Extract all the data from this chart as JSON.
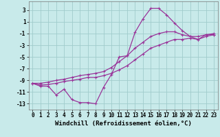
{
  "xlabel": "Windchill (Refroidissement éolien,°C)",
  "xlim": [
    -0.5,
    23.5
  ],
  "ylim": [
    -14,
    4.5
  ],
  "yticks": [
    3,
    1,
    -1,
    -3,
    -5,
    -7,
    -9,
    -11,
    -13
  ],
  "xticks": [
    0,
    1,
    2,
    3,
    4,
    5,
    6,
    7,
    8,
    9,
    10,
    11,
    12,
    13,
    14,
    15,
    16,
    17,
    18,
    19,
    20,
    21,
    22,
    23
  ],
  "bg_color": "#c8eaea",
  "grid_color": "#a0cccc",
  "line_color": "#993399",
  "line1_x": [
    0,
    1,
    2,
    3,
    4,
    5,
    6,
    7,
    8,
    9,
    10,
    11,
    12,
    13,
    14,
    15,
    16,
    17,
    18,
    19,
    20,
    21,
    22,
    23
  ],
  "line1_y": [
    -9.5,
    -9.8,
    -9.7,
    -9.5,
    -9.2,
    -9.0,
    -8.8,
    -8.5,
    -8.5,
    -8.2,
    -7.8,
    -7.2,
    -6.5,
    -5.5,
    -4.5,
    -3.5,
    -3.0,
    -2.5,
    -2.0,
    -2.0,
    -1.8,
    -2.0,
    -1.5,
    -1.2
  ],
  "line2_x": [
    0,
    1,
    2,
    3,
    4,
    5,
    6,
    7,
    8,
    9,
    10,
    11,
    12,
    13,
    14,
    15,
    16,
    17,
    18,
    19,
    20,
    21,
    22,
    23
  ],
  "line2_y": [
    -9.5,
    -10.0,
    -10.0,
    -11.5,
    -10.5,
    -12.3,
    -12.8,
    -12.8,
    -13.0,
    -10.2,
    -8.0,
    -5.0,
    -4.8,
    -0.8,
    1.5,
    3.3,
    3.3,
    2.2,
    0.8,
    -0.5,
    -1.5,
    -2.0,
    -1.2,
    -1.2
  ],
  "line3_x": [
    0,
    1,
    2,
    3,
    4,
    5,
    6,
    7,
    8,
    9,
    10,
    11,
    12,
    13,
    14,
    15,
    16,
    17,
    18,
    19,
    20,
    21,
    22,
    23
  ],
  "line3_y": [
    -9.5,
    -9.5,
    -9.3,
    -9.0,
    -8.8,
    -8.5,
    -8.2,
    -8.0,
    -7.8,
    -7.5,
    -6.8,
    -5.8,
    -4.8,
    -3.5,
    -2.5,
    -1.5,
    -1.0,
    -0.7,
    -0.7,
    -1.2,
    -1.5,
    -1.5,
    -1.2,
    -1.0
  ],
  "marker": "+",
  "markersize": 3,
  "linewidth": 0.9,
  "tick_fontsize": 5.5,
  "label_fontsize": 6.5
}
